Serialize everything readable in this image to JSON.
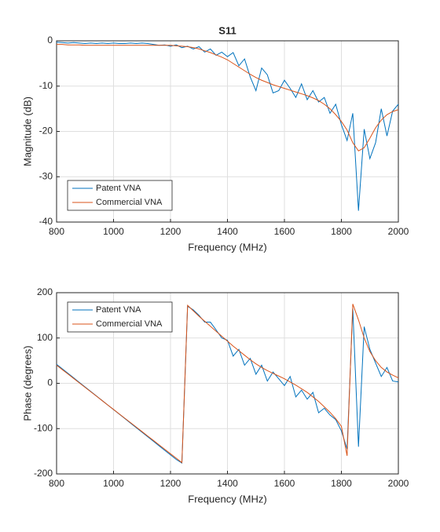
{
  "chart_data": [
    {
      "type": "line",
      "title": "S11",
      "xlabel": "Frequency (MHz)",
      "ylabel": "Magnitude (dB)",
      "x": [
        800,
        820,
        840,
        860,
        880,
        900,
        920,
        940,
        960,
        980,
        1000,
        1020,
        1040,
        1060,
        1080,
        1100,
        1120,
        1140,
        1160,
        1180,
        1200,
        1220,
        1240,
        1260,
        1280,
        1300,
        1320,
        1340,
        1360,
        1380,
        1400,
        1420,
        1440,
        1460,
        1480,
        1500,
        1520,
        1540,
        1560,
        1580,
        1600,
        1620,
        1640,
        1660,
        1680,
        1700,
        1720,
        1740,
        1760,
        1780,
        1800,
        1820,
        1840,
        1860,
        1880,
        1900,
        1920,
        1940,
        1960,
        1980,
        2000
      ],
      "series": [
        {
          "name": "Patent VNA",
          "color": "#0072bd",
          "values": [
            -0.3,
            -0.4,
            -0.5,
            -0.4,
            -0.5,
            -0.6,
            -0.5,
            -0.6,
            -0.5,
            -0.6,
            -0.5,
            -0.6,
            -0.6,
            -0.5,
            -0.6,
            -0.5,
            -0.6,
            -0.8,
            -1,
            -0.9,
            -1.2,
            -0.9,
            -1.5,
            -1.2,
            -1.8,
            -1.3,
            -2.5,
            -1.8,
            -3.2,
            -2.5,
            -3.5,
            -2.6,
            -5.5,
            -4,
            -8,
            -11,
            -6,
            -7.5,
            -11.5,
            -11,
            -8.7,
            -10.5,
            -12.5,
            -9.5,
            -13,
            -11,
            -13.5,
            -12.5,
            -16,
            -14,
            -18.5,
            -22,
            -16,
            -37.5,
            -19.5,
            -26,
            -22.5,
            -15,
            -21,
            -15.5,
            -14
          ]
        },
        {
          "name": "Commercial VNA",
          "color": "#d95319",
          "values": [
            -0.8,
            -0.8,
            -0.9,
            -0.9,
            -0.9,
            -1,
            -1,
            -1,
            -1,
            -1,
            -1,
            -1,
            -1,
            -1,
            -1,
            -1,
            -1,
            -1,
            -1,
            -1,
            -1,
            -1.1,
            -1.2,
            -1.3,
            -1.5,
            -1.8,
            -2.2,
            -2.6,
            -3.1,
            -3.6,
            -4.2,
            -5,
            -5.8,
            -6.6,
            -7.4,
            -8.1,
            -8.7,
            -9.2,
            -9.7,
            -10.1,
            -10.5,
            -10.9,
            -11.3,
            -11.7,
            -12.1,
            -12.6,
            -13.2,
            -14,
            -15,
            -16.3,
            -17.8,
            -19.7,
            -22.5,
            -24.3,
            -23.6,
            -21.5,
            -19.2,
            -17.5,
            -16.3,
            -15.6,
            -15.2
          ]
        }
      ],
      "xlim": [
        800,
        2000
      ],
      "ylim": [
        -40,
        0
      ],
      "xticks": [
        800,
        1000,
        1200,
        1400,
        1600,
        1800,
        2000
      ],
      "yticks": [
        -40,
        -30,
        -20,
        -10,
        0
      ],
      "grid": true,
      "legend": "southwest"
    },
    {
      "type": "line",
      "xlabel": "Frequency (MHz)",
      "ylabel": "Phase (degrees)",
      "x": [
        800,
        820,
        840,
        860,
        880,
        900,
        920,
        940,
        960,
        980,
        1000,
        1020,
        1040,
        1060,
        1080,
        1100,
        1120,
        1140,
        1160,
        1180,
        1200,
        1220,
        1240,
        1260,
        1280,
        1300,
        1320,
        1340,
        1360,
        1380,
        1400,
        1420,
        1440,
        1460,
        1480,
        1500,
        1520,
        1540,
        1560,
        1580,
        1600,
        1620,
        1640,
        1660,
        1680,
        1700,
        1720,
        1740,
        1760,
        1780,
        1800,
        1820,
        1840,
        1860,
        1880,
        1900,
        1920,
        1940,
        1960,
        1980,
        2000
      ],
      "series": [
        {
          "name": "Patent VNA",
          "color": "#0072bd",
          "values": [
            42,
            32,
            22,
            12,
            2,
            -8,
            -18,
            -28,
            -38,
            -48,
            -58,
            -68,
            -78,
            -88,
            -98,
            -108,
            -118,
            -128,
            -138,
            -148,
            -158,
            -168,
            -176,
            170,
            162,
            150,
            135,
            135,
            118,
            100,
            95,
            60,
            75,
            40,
            55,
            20,
            40,
            5,
            25,
            10,
            -5,
            15,
            -30,
            -15,
            -35,
            -20,
            -65,
            -55,
            -70,
            -80,
            -105,
            -145,
            165,
            -140,
            125,
            75,
            45,
            15,
            35,
            5,
            3
          ]
        },
        {
          "name": "Commercial VNA",
          "color": "#d95319",
          "values": [
            40,
            30.2,
            20.5,
            10.7,
            0.9,
            -8.9,
            -18.6,
            -28.4,
            -38.2,
            -48,
            -57.7,
            -67.5,
            -77.3,
            -87,
            -96.8,
            -106.6,
            -116.4,
            -126.1,
            -135.9,
            -145.7,
            -155.5,
            -165.2,
            -175,
            172,
            160,
            148,
            137,
            126,
            115,
            104,
            93,
            82,
            72,
            62,
            52,
            43,
            35,
            28,
            22,
            16,
            10,
            3,
            -4,
            -12,
            -20,
            -30,
            -40,
            -52,
            -64,
            -78,
            -95,
            -160,
            175,
            140,
            100,
            70,
            50,
            35,
            25,
            18,
            12
          ]
        }
      ],
      "xlim": [
        800,
        2000
      ],
      "ylim": [
        -200,
        200
      ],
      "xticks": [
        800,
        1000,
        1200,
        1400,
        1600,
        1800,
        2000
      ],
      "yticks": [
        -200,
        -100,
        0,
        100,
        200
      ],
      "grid": true,
      "legend": "northwest"
    }
  ]
}
